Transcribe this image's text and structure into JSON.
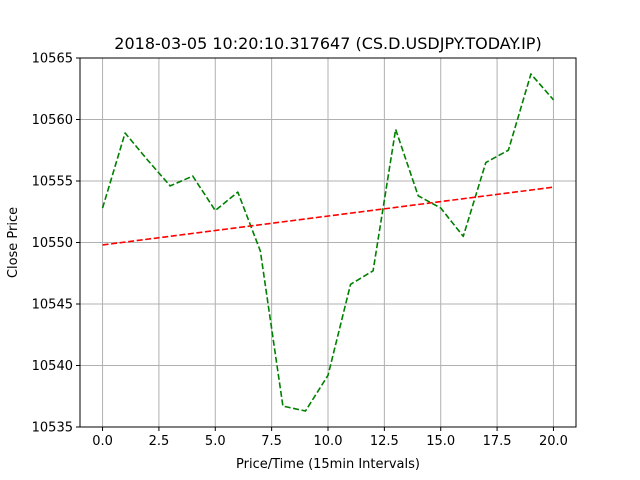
{
  "chart_data": {
    "type": "line",
    "title": "2018-03-05 10:20:10.317647 (CS.D.USDJPY.TODAY.IP)",
    "xlabel": "Price/Time (15min Intervals)",
    "ylabel": "Close Price",
    "xlim": [
      -1.0,
      21.0
    ],
    "ylim": [
      10535,
      10565
    ],
    "xticks": [
      0.0,
      2.5,
      5.0,
      7.5,
      10.0,
      12.5,
      15.0,
      17.5,
      20.0
    ],
    "xtick_labels": [
      "0.0",
      "2.5",
      "5.0",
      "7.5",
      "10.0",
      "12.5",
      "15.0",
      "17.5",
      "20.0"
    ],
    "yticks": [
      10535,
      10540,
      10545,
      10550,
      10555,
      10560,
      10565
    ],
    "ytick_labels": [
      "10535",
      "10540",
      "10545",
      "10550",
      "10555",
      "10560",
      "10565"
    ],
    "grid": true,
    "series": [
      {
        "color": "#008000",
        "linestyle": "dashed",
        "x": [
          0,
          1,
          2,
          3,
          4,
          5,
          6,
          7,
          8,
          9,
          10,
          11,
          12,
          13,
          14,
          15,
          16,
          17,
          18,
          19,
          20
        ],
        "values": [
          10552.8,
          10558.9,
          10556.7,
          10554.6,
          10555.4,
          10552.6,
          10554.1,
          10549.3,
          10536.7,
          10536.3,
          10539.2,
          10546.6,
          10547.7,
          10559.2,
          10553.8,
          10552.8,
          10550.5,
          10556.5,
          10557.5,
          10563.7,
          10561.6
        ]
      },
      {
        "color": "#ff0000",
        "linestyle": "dashed",
        "x": [
          0,
          20
        ],
        "values": [
          10549.8,
          10554.5
        ]
      }
    ]
  }
}
